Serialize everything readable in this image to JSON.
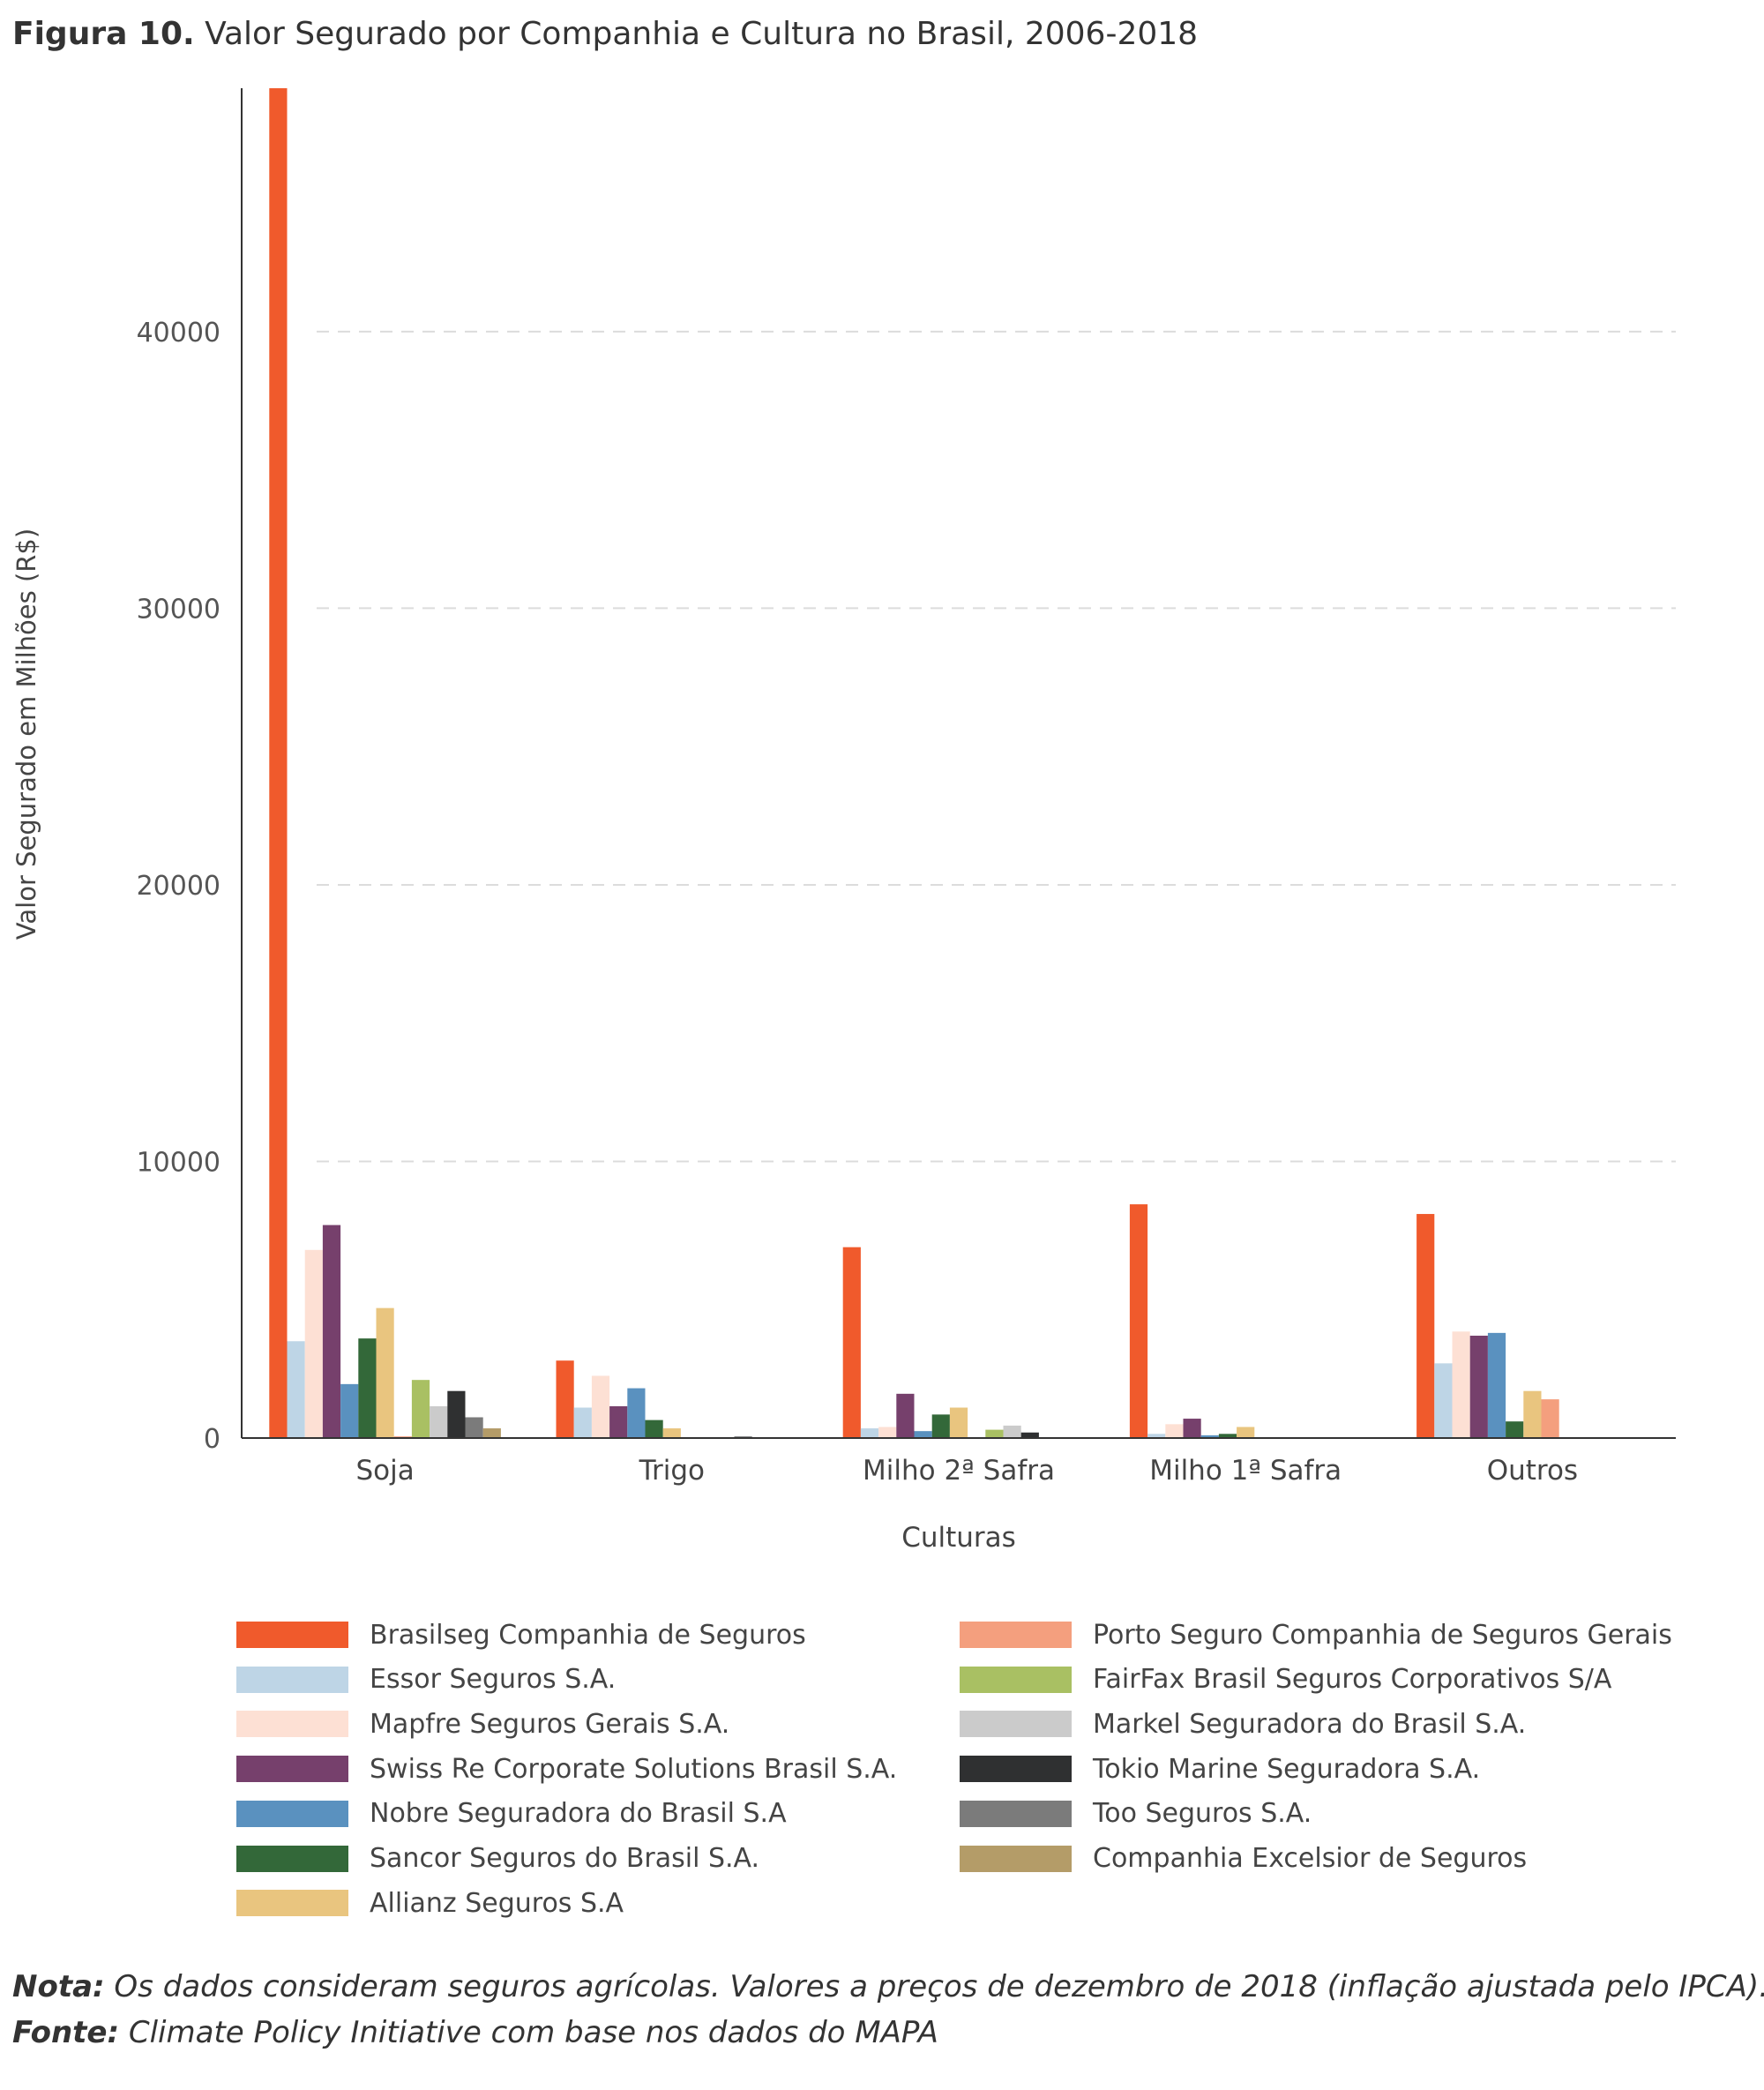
{
  "header": {
    "figure_label": "Figura 10.",
    "title_text": "Valor Segurado por Companhia e Cultura no Brasil, 2006-2018"
  },
  "chart_data": {
    "type": "bar",
    "xlabel": "Culturas",
    "ylabel": "Valor Segurado em Milhões (R$)",
    "ylim": [
      0,
      48800
    ],
    "yticks": [
      0,
      10000,
      20000,
      30000,
      40000
    ],
    "ytick_labels": [
      "0",
      "10000",
      "20000",
      "30000",
      "40000"
    ],
    "grid": "horizontal dashed",
    "legend_position": "bottom",
    "categories": [
      "Soja",
      "Trigo",
      "Milho 2ª Safra",
      "Milho 1ª Safra",
      "Outros"
    ],
    "series": [
      {
        "name": "Brasilseg Companhia de Seguros",
        "color": "#f05a2c",
        "values": [
          48800,
          2800,
          6900,
          8450,
          8100
        ]
      },
      {
        "name": "Essor Seguros S.A.",
        "color": "#bed5e6",
        "values": [
          3500,
          1100,
          350,
          150,
          2700
        ]
      },
      {
        "name": "Mapfre Seguros Gerais S.A.",
        "color": "#fde0d4",
        "values": [
          6800,
          2250,
          400,
          500,
          3850
        ]
      },
      {
        "name": "Swiss Re Corporate Solutions Brasil S.A.",
        "color": "#76406c",
        "values": [
          7700,
          1150,
          1600,
          700,
          3700
        ]
      },
      {
        "name": "Nobre Seguradora do Brasil S.A",
        "color": "#5a91bf",
        "values": [
          1950,
          1800,
          250,
          100,
          3800
        ]
      },
      {
        "name": "Sancor Seguros do Brasil S.A.",
        "color": "#336839",
        "values": [
          3600,
          650,
          850,
          150,
          600
        ]
      },
      {
        "name": "Allianz Seguros S.A",
        "color": "#e9c57f",
        "values": [
          4700,
          350,
          1100,
          400,
          1700
        ]
      },
      {
        "name": "Porto Seguro Companhia de Seguros Gerais",
        "color": "#f49f7e",
        "values": [
          60,
          10,
          10,
          10,
          1400
        ]
      },
      {
        "name": "FairFax Brasil Seguros Corporativos S/A",
        "color": "#a9c063",
        "values": [
          2100,
          10,
          300,
          10,
          30
        ]
      },
      {
        "name": "Markel Seguradora do Brasil S.A.",
        "color": "#cbcbcb",
        "values": [
          1150,
          10,
          450,
          10,
          10
        ]
      },
      {
        "name": "Tokio Marine Seguradora S.A.",
        "color": "#2f3031",
        "values": [
          1700,
          50,
          200,
          10,
          10
        ]
      },
      {
        "name": "Too Seguros S.A.",
        "color": "#7b7b7b",
        "values": [
          750,
          10,
          20,
          10,
          10
        ]
      },
      {
        "name": "Companhia Excelsior de Seguros",
        "color": "#b49c68",
        "values": [
          350,
          20,
          20,
          10,
          10
        ]
      }
    ]
  },
  "footer": {
    "note_label": "Nota:",
    "note_text": "Os dados consideram seguros agrícolas. Valores a preços de dezembro de 2018 (inflação ajustada pelo IPCA).",
    "source_label": "Fonte:",
    "source_text": "Climate Policy Initiative com base nos dados do MAPA"
  }
}
